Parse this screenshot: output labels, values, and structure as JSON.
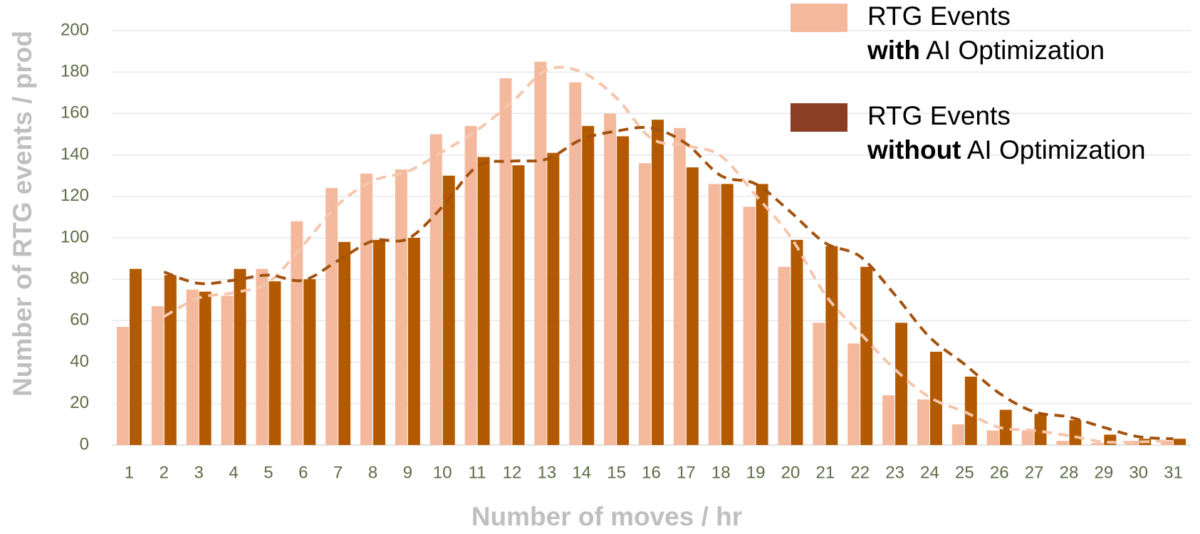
{
  "chart_data": {
    "type": "bar",
    "x_label": "Number of moves / hr",
    "y_label": "Number of RTG events / prod",
    "categories": [
      "1",
      "2",
      "3",
      "4",
      "5",
      "6",
      "7",
      "8",
      "9",
      "10",
      "11",
      "12",
      "13",
      "14",
      "15",
      "16",
      "17",
      "18",
      "19",
      "20",
      "21",
      "22",
      "23",
      "24",
      "25",
      "26",
      "27",
      "28",
      "29",
      "30",
      "31"
    ],
    "series": [
      {
        "name": "RTG Events with AI Optimization",
        "color": "#f4b99d",
        "trend_color": "#f5c6ac",
        "values": [
          57,
          67,
          75,
          72,
          85,
          108,
          124,
          131,
          133,
          150,
          154,
          177,
          185,
          175,
          160,
          136,
          153,
          126,
          115,
          86,
          59,
          49,
          24,
          22,
          10,
          7,
          7,
          2,
          1,
          2,
          2
        ]
      },
      {
        "name": "RTG Events without AI Optimization",
        "color": "#b35a00",
        "legend_color": "#8b3e23",
        "trend_color": "#a3520e",
        "values": [
          85,
          82,
          74,
          85,
          79,
          80,
          98,
          99,
          100,
          130,
          139,
          135,
          141,
          154,
          149,
          157,
          134,
          126,
          126,
          99,
          96,
          86,
          59,
          45,
          33,
          17,
          15,
          12,
          5,
          3,
          3
        ]
      }
    ],
    "ylim": [
      0,
      200
    ],
    "yticks": [
      0,
      20,
      40,
      60,
      80,
      100,
      120,
      140,
      160,
      180,
      200
    ],
    "grid": true
  }
}
